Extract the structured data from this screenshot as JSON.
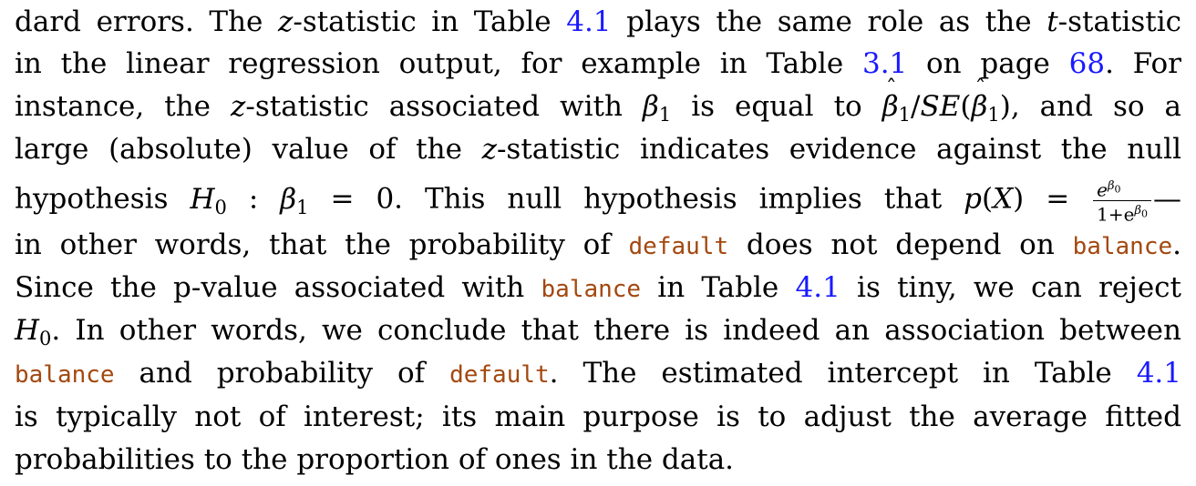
{
  "paragraph": {
    "l1": {
      "a": "dard errors. The ",
      "z": "z",
      "b": "-statistic in Table ",
      "ref": "4.1",
      "c": " plays the same role as the ",
      "t": "t",
      "d": "-statistic"
    },
    "l2": {
      "a": "in the linear regression output, for example in Table ",
      "ref1": "3.1",
      "b": " on page ",
      "ref2": "68",
      "c": ". For"
    },
    "l3": {
      "a": "instance, the ",
      "z": "z",
      "b": "-statistic associated with ",
      "beta": "β",
      "one": "1",
      "c": " is equal to ",
      "beta2": "β",
      "one2": "1",
      "d": "/",
      "se": "SE",
      "e": "(",
      "beta3": "β",
      "one3": "1",
      "f": "), and so a"
    },
    "l4": {
      "a": "large (absolute) value of the ",
      "z": "z",
      "b": "-statistic indicates evidence against the null"
    },
    "l5": {
      "a": "hypothesis ",
      "h": "H",
      "zero": "0",
      "b": " : ",
      "beta": "β",
      "one": "1",
      "c": " = 0. This null hypothesis implies that ",
      "p": "p",
      "d": "(",
      "x": "X",
      "e": ") = ",
      "num": "e",
      "num_sup": "β",
      "num_sub": "0",
      "den": "1+e",
      "den_sup": "β",
      "den_sub": "0",
      "f": "—"
    },
    "l6": {
      "a": "in other words, that the probability of ",
      "code1": "default",
      "b": " does not depend on ",
      "code2": "balance",
      "c": "."
    },
    "l7": {
      "a": "Since the p-value associated with ",
      "code": "balance",
      "b": " in Table ",
      "ref": "4.1",
      "c": " is tiny, we can reject"
    },
    "l8": {
      "h": "H",
      "zero": "0",
      "a": ". In other words, we conclude that there is indeed an association between"
    },
    "l9": {
      "code1": "balance",
      "a": " and probability of ",
      "code2": "default",
      "b": ". The estimated intercept in Table ",
      "ref": "4.1"
    },
    "l10": {
      "a": "is typically not of interest; its main purpose is to adjust the average fitted"
    },
    "l11": {
      "a": "probabilities to the proportion of ones in the data."
    }
  },
  "colors": {
    "link": "#1a1aff",
    "code": "#a3480f",
    "text": "#000000"
  }
}
